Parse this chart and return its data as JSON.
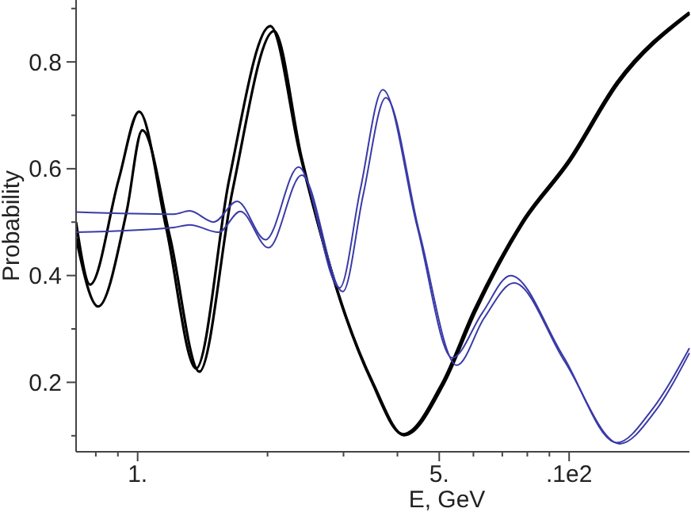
{
  "chart_data": {
    "type": "line",
    "xlabel": "E, GeV",
    "ylabel": "Probability",
    "log": "x",
    "xlim": [
      0.72,
      19
    ],
    "ylim": [
      0.07,
      0.91
    ],
    "xticks": [
      {
        "value": 0.8,
        "label": null
      },
      {
        "value": 0.9,
        "label": null
      },
      {
        "value": 1,
        "label": "1."
      },
      {
        "value": 2,
        "label": null
      },
      {
        "value": 3,
        "label": null
      },
      {
        "value": 4,
        "label": null
      },
      {
        "value": 5,
        "label": "5."
      },
      {
        "value": 6,
        "label": null
      },
      {
        "value": 7,
        "label": null
      },
      {
        "value": 8,
        "label": null
      },
      {
        "value": 9,
        "label": null
      },
      {
        "value": 10,
        "label": ".1e2"
      }
    ],
    "yticks": [
      {
        "value": 0.1,
        "label": null
      },
      {
        "value": 0.2,
        "label": "0.2"
      },
      {
        "value": 0.3,
        "label": null
      },
      {
        "value": 0.4,
        "label": "0.4"
      },
      {
        "value": 0.5,
        "label": null
      },
      {
        "value": 0.6,
        "label": "0.6"
      },
      {
        "value": 0.7,
        "label": null
      },
      {
        "value": 0.8,
        "label": "0.8"
      },
      {
        "value": 0.9,
        "label": null
      }
    ],
    "grid": false,
    "marker": "none",
    "line_style": "solid",
    "series": [
      {
        "color": "#000000",
        "x": [
          0.72,
          0.776,
          0.904,
          1.008,
          1.164,
          1.366,
          1.63,
          2.03,
          2.38,
          3.02,
          3.48,
          4.12,
          5.09,
          6.03,
          7.77,
          10,
          12.9,
          19
        ],
        "values": [
          0.5,
          0.383,
          0.58,
          0.707,
          0.49,
          0.226,
          0.58,
          0.867,
          0.626,
          0.328,
          0.203,
          0.103,
          0.2,
          0.336,
          0.5,
          0.617,
          0.762,
          0.893
        ]
      },
      {
        "color": "#000000",
        "x": [
          0.72,
          0.81,
          0.943,
          1.025,
          1.19,
          1.39,
          1.66,
          2.07,
          2.4,
          3.05,
          3.52,
          4.15,
          5.12,
          6.06,
          7.8,
          10.05,
          13,
          19
        ],
        "values": [
          0.47,
          0.342,
          0.52,
          0.672,
          0.47,
          0.22,
          0.56,
          0.858,
          0.62,
          0.32,
          0.197,
          0.101,
          0.197,
          0.332,
          0.497,
          0.614,
          0.76,
          0.89
        ]
      },
      {
        "color": "#3a3aa8",
        "x": [
          0.72,
          1.214,
          1.32,
          1.5,
          1.7,
          1.98,
          2.36,
          2.94,
          3.28,
          3.7,
          4.45,
          5.36,
          6.29,
          7.32,
          9.67,
          12.9,
          15.6,
          19
        ],
        "values": [
          0.519,
          0.515,
          0.521,
          0.5,
          0.539,
          0.467,
          0.603,
          0.377,
          0.56,
          0.748,
          0.49,
          0.246,
          0.33,
          0.4,
          0.25,
          0.087,
          0.15,
          0.264
        ]
      },
      {
        "color": "#3a3aa8",
        "x": [
          0.72,
          1.214,
          1.32,
          1.54,
          1.73,
          2.01,
          2.4,
          2.99,
          3.33,
          3.76,
          4.5,
          5.49,
          6.35,
          7.45,
          9.75,
          13.1,
          15.8,
          19
        ],
        "values": [
          0.481,
          0.49,
          0.495,
          0.481,
          0.52,
          0.452,
          0.588,
          0.37,
          0.55,
          0.733,
          0.48,
          0.232,
          0.32,
          0.386,
          0.24,
          0.085,
          0.145,
          0.255
        ]
      }
    ]
  }
}
